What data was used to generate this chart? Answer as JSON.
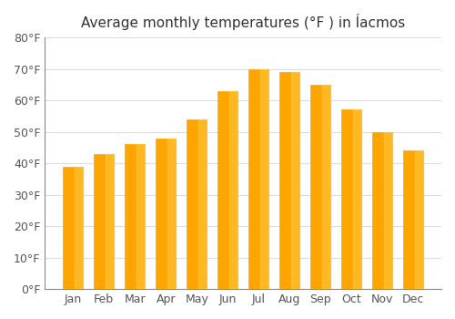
{
  "title": "Average monthly temperatures (°F ) in Íасmos",
  "months": [
    "Jan",
    "Feb",
    "Mar",
    "Apr",
    "May",
    "Jun",
    "Jul",
    "Aug",
    "Sep",
    "Oct",
    "Nov",
    "Dec"
  ],
  "values": [
    39,
    43,
    46,
    48,
    54,
    63,
    70,
    69,
    65,
    57,
    50,
    44
  ],
  "bar_color_top": "#FFA500",
  "bar_color_bottom": "#FFB733",
  "ylim": [
    0,
    80
  ],
  "yticks": [
    0,
    10,
    20,
    30,
    40,
    50,
    60,
    70,
    80
  ],
  "ytick_labels": [
    "0°F",
    "10°F",
    "20°F",
    "30°F",
    "40°F",
    "50°F",
    "60°F",
    "70°F",
    "80°F"
  ],
  "background_color": "#ffffff",
  "grid_color": "#dddddd",
  "title_fontsize": 11,
  "tick_fontsize": 9,
  "bar_edge_color": "#CC8800"
}
